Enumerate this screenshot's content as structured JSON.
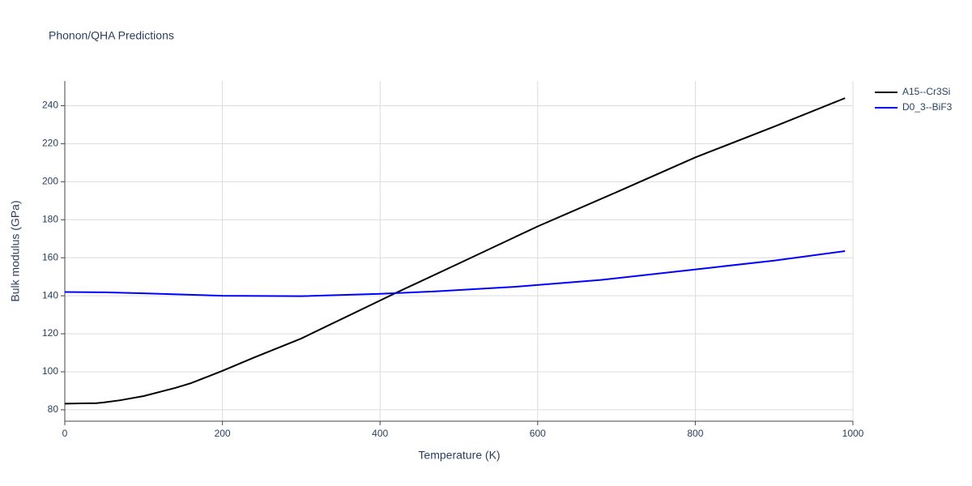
{
  "chart_data": {
    "type": "line",
    "title": "Phonon/QHA Predictions",
    "x_label": "Temperature (K)",
    "y_label": "Bulk modulus (GPa)",
    "xlim": [
      0,
      1000
    ],
    "ylim": [
      74,
      253
    ],
    "xticks": [
      0,
      200,
      400,
      600,
      800,
      1000
    ],
    "yticks": [
      80,
      100,
      120,
      140,
      160,
      180,
      200,
      220,
      240
    ],
    "grid": true,
    "legend": "right",
    "series": [
      {
        "name": "A15--Cr3Si",
        "color": "#000000",
        "x": [
          0,
          20,
          40,
          50,
          70,
          100,
          140,
          160,
          200,
          240,
          300,
          400,
          420,
          500,
          600,
          700,
          800,
          900,
          990
        ],
        "values": [
          83.2,
          83.4,
          83.5,
          83.9,
          85,
          87.2,
          91.5,
          94,
          100.5,
          107.5,
          117.5,
          137.5,
          141.5,
          157,
          176.5,
          194.5,
          212.8,
          229,
          244
        ]
      },
      {
        "name": "D0_3--BiF3",
        "color": "#0000ff",
        "x": [
          0,
          50,
          100,
          200,
          300,
          400,
          470,
          570,
          680,
          790,
          900,
          990
        ],
        "values": [
          142,
          141.8,
          141.3,
          140,
          139.8,
          141,
          142.3,
          144.7,
          148.3,
          153.4,
          158.5,
          163.5
        ]
      }
    ]
  }
}
